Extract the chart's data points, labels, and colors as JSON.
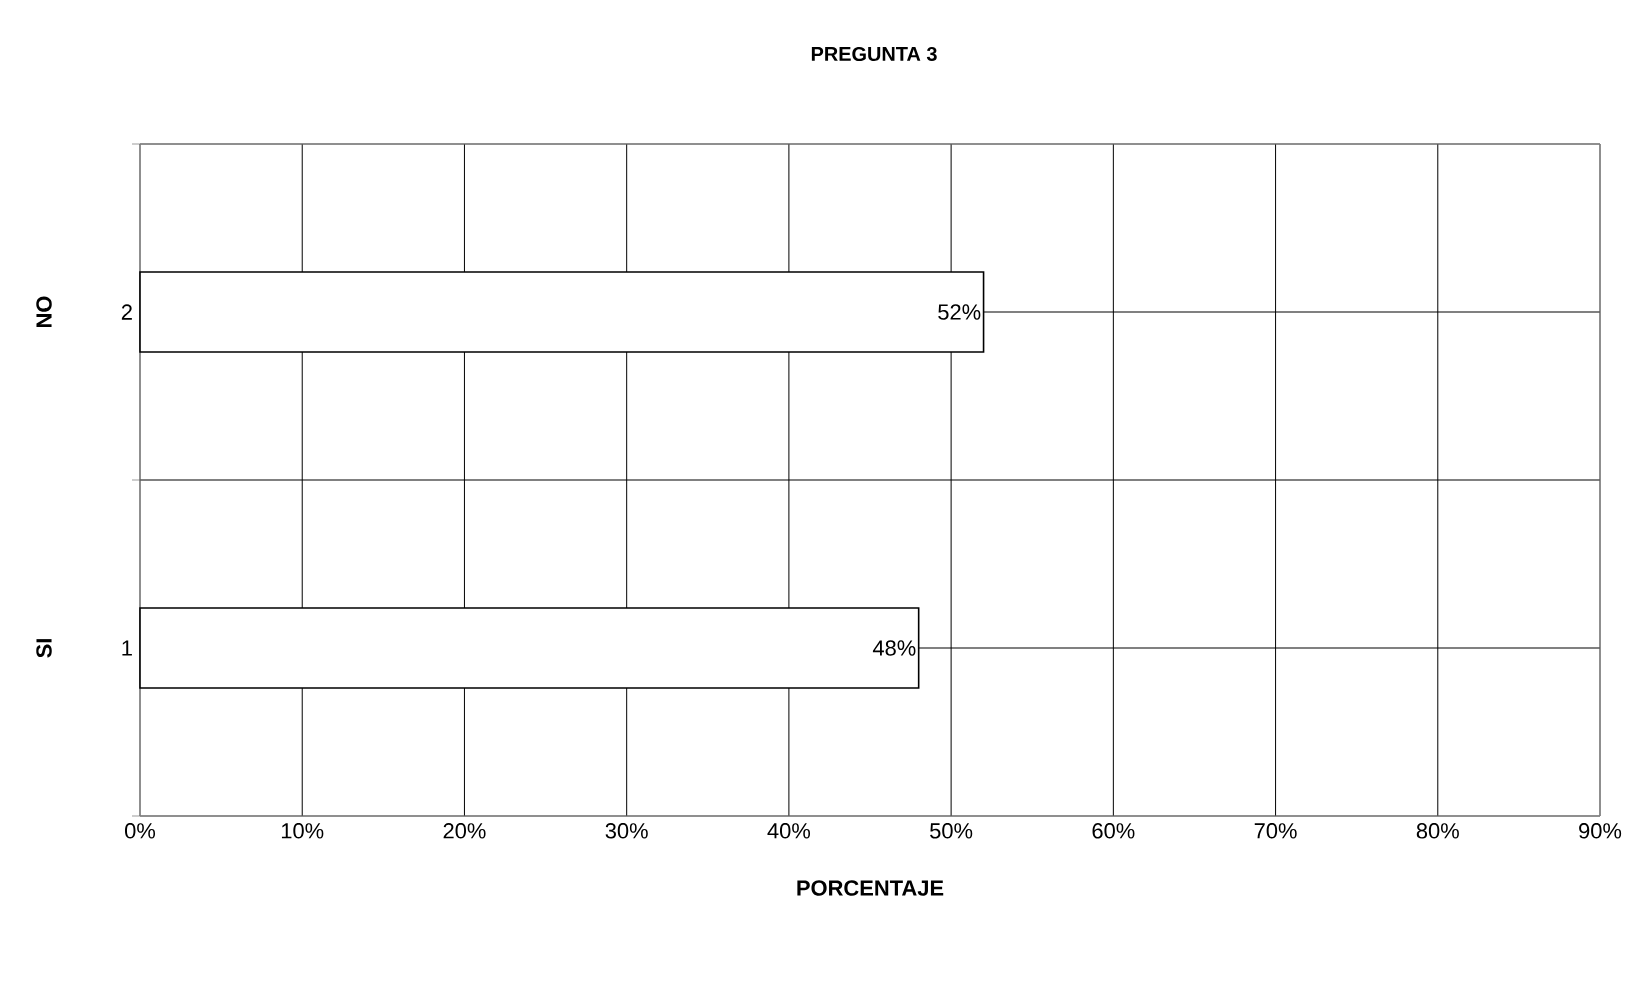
{
  "chart_data": {
    "type": "bar",
    "orientation": "horizontal",
    "title": "PREGUNTA 3",
    "xlabel": "PORCENTAJE",
    "categories": [
      "2",
      "1"
    ],
    "values": [
      52,
      48
    ],
    "color": "#ffffff",
    "value_labels": [
      "52%",
      "48%"
    ],
    "xlim": [
      0,
      90
    ],
    "xticks": [
      {
        "value": 0,
        "label": "0%"
      },
      {
        "value": 10,
        "label": "10%"
      },
      {
        "value": 20,
        "label": "20%"
      },
      {
        "value": 30,
        "label": "30%"
      },
      {
        "value": 40,
        "label": "40%"
      },
      {
        "value": 50,
        "label": "50%"
      },
      {
        "value": 60,
        "label": "60%"
      },
      {
        "value": 70,
        "label": "70%"
      },
      {
        "value": 80,
        "label": "80%"
      },
      {
        "value": 90,
        "label": "90%"
      }
    ],
    "annotations": [
      "NO",
      "SI"
    ],
    "grid": true
  }
}
